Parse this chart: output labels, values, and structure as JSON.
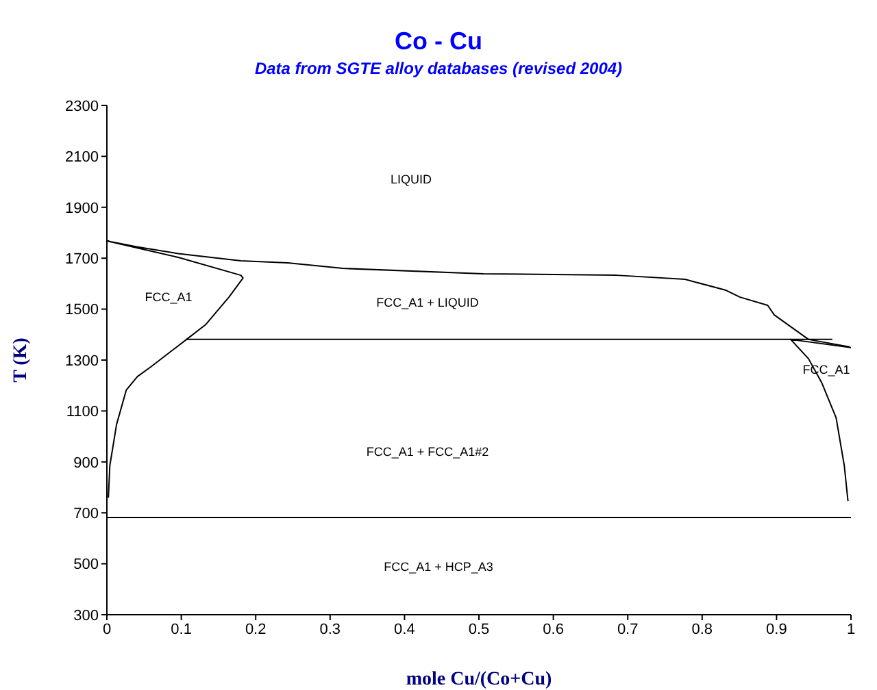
{
  "chart_data": {
    "type": "line",
    "title": "Co - Cu",
    "subtitle": "Data from SGTE alloy databases (revised 2004)",
    "xlabel": "mole Cu/(Co+Cu)",
    "ylabel": "T (K)",
    "xlim": [
      0,
      1
    ],
    "xticks": [
      0,
      0.1,
      0.2,
      0.3,
      0.4,
      0.5,
      0.6,
      0.7,
      0.8,
      0.9,
      1
    ],
    "ylim": [
      300,
      2300
    ],
    "yticks": [
      300,
      500,
      700,
      900,
      1100,
      1300,
      1500,
      1700,
      1900,
      2100,
      2300
    ],
    "grid": false,
    "marker": "none",
    "line_style": "solid",
    "series": [
      {
        "color": "#000000",
        "x": [
          0.998,
          0.943,
          0.897,
          0.888,
          0.851,
          0.832,
          0.777,
          0.685,
          0.506,
          0.317,
          0.243,
          0.18,
          0.096,
          0.04,
          0,
          0.04,
          0.096,
          0.18,
          0.183,
          0.164,
          0.133,
          0.107,
          0.059,
          0.041,
          0.026,
          0.013,
          0.004,
          0.002
        ],
        "values": [
          1352,
          1381,
          1477,
          1515,
          1547,
          1574,
          1617,
          1633,
          1639,
          1660,
          1682,
          1690,
          1718,
          1745,
          1768,
          1741,
          1703,
          1633,
          1622,
          1547,
          1440,
          1381,
          1273,
          1235,
          1182,
          1047,
          886,
          760
        ]
      },
      {
        "color": "#000000",
        "x": [
          0.107,
          0.975
        ],
        "values": [
          1381,
          1381
        ]
      },
      {
        "color": "#000000",
        "x": [
          0,
          1
        ],
        "values": [
          682,
          682
        ]
      },
      {
        "color": "#000000",
        "x": [
          1,
          0.919,
          0.943,
          0.961,
          0.98,
          0.991,
          0.996
        ],
        "values": [
          1349,
          1381,
          1305,
          1209,
          1074,
          886,
          746
        ]
      }
    ],
    "annotations": [
      "LIQUID",
      "FCC_A1",
      "FCC_A1 + LIQUID",
      "FCC_A1",
      "FCC_A1 + FCC_A1#2",
      "FCC_A1 + HCP_A3"
    ]
  }
}
